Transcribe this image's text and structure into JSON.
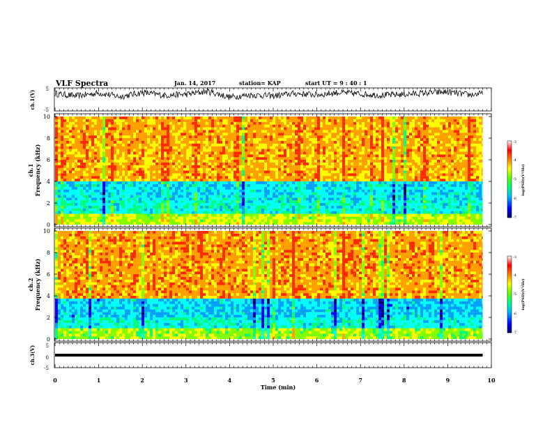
{
  "header": {
    "title": "VLF Spectra",
    "date": "Jan. 14, 2017",
    "station": "station= KAP",
    "start": "start  UT  =   9 : 40 : 1"
  },
  "chart_data": [
    {
      "type": "line",
      "title": "",
      "ylabel": "ch.1(V)",
      "ylim": [
        -5,
        5
      ],
      "yticks": [
        "5",
        "-5"
      ],
      "xlim": [
        0,
        10
      ],
      "note": "noisy waveform, amplitude approx 0 to 5 V",
      "x": [
        0.0,
        0.5,
        1.0,
        1.5,
        2.0,
        2.5,
        3.0,
        3.5,
        4.0,
        4.5,
        5.0,
        5.5,
        6.0,
        6.5,
        7.0,
        7.5,
        8.0,
        8.5,
        9.0,
        9.5,
        9.8
      ],
      "values": [
        2.5,
        1.5,
        2.8,
        1.2,
        3.0,
        1.8,
        2.2,
        3.5,
        1.0,
        2.0,
        1.5,
        2.6,
        2.0,
        3.0,
        2.4,
        1.8,
        2.2,
        2.8,
        3.2,
        2.0,
        2.5
      ]
    },
    {
      "type": "heatmap",
      "title": "",
      "ylabel": "ch.1",
      "ylabel2": "Frequency (kHz)",
      "ylim": [
        0,
        10
      ],
      "yticks": [
        "0",
        "2",
        "4",
        "6",
        "8",
        "10"
      ],
      "xlim": [
        0,
        9.8
      ],
      "colorbar": {
        "label": "log(PSD)(V²/Hz)",
        "range": [
          -7,
          -3
        ],
        "ticks": [
          "-3",
          "-4",
          "-5",
          "-6",
          "-7"
        ]
      },
      "bands_khz": [
        {
          "from": 0.0,
          "to": 1.0,
          "level": -4.3
        },
        {
          "from": 1.0,
          "to": 2.2,
          "level": -5.4
        },
        {
          "from": 2.2,
          "to": 4.0,
          "level": -5.6
        },
        {
          "from": 4.0,
          "to": 10.0,
          "level": -3.6
        }
      ]
    },
    {
      "type": "heatmap",
      "title": "",
      "ylabel": "ch.2",
      "ylabel2": "Frequency (kHz)",
      "ylim": [
        0,
        10
      ],
      "yticks": [
        "0",
        "2",
        "4",
        "6",
        "8",
        "10"
      ],
      "xlim": [
        0,
        9.8
      ],
      "colorbar": {
        "label": "log(PSD)(V²/Hz)",
        "range": [
          -7,
          -3
        ],
        "ticks": [
          "-3",
          "-4",
          "-5",
          "-6",
          "-7"
        ]
      },
      "bands_khz": [
        {
          "from": 0.0,
          "to": 1.0,
          "level": -4.4
        },
        {
          "from": 1.0,
          "to": 2.0,
          "level": -5.4
        },
        {
          "from": 2.0,
          "to": 3.6,
          "level": -5.7
        },
        {
          "from": 3.6,
          "to": 10.0,
          "level": -3.5
        }
      ]
    },
    {
      "type": "line",
      "title": "",
      "ylabel": "ch.3(V)",
      "ylim": [
        -5,
        5
      ],
      "yticks": [
        "5",
        "0",
        "-5"
      ],
      "xlabel": "Time  (min)",
      "xlim": [
        0,
        10
      ],
      "xticks": [
        "0",
        "1",
        "2",
        "3",
        "4",
        "5",
        "6",
        "7",
        "8",
        "9",
        "10"
      ],
      "x": [
        0,
        9.8
      ],
      "values": [
        0,
        0
      ]
    }
  ],
  "colors": {
    "colormap": [
      "#00006e",
      "#0000ff",
      "#00a0ff",
      "#00ffff",
      "#00ff80",
      "#80ff00",
      "#ffff00",
      "#ffa000",
      "#ff2a00"
    ],
    "trace": "#000000"
  }
}
